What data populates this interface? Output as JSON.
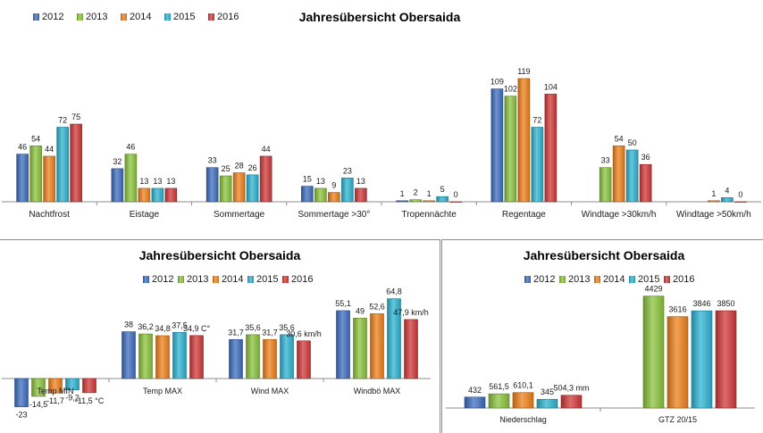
{
  "series_colors": {
    "2012": "#3f6fc0",
    "2013": "#8cc43d",
    "2014": "#f0821c",
    "2015": "#2fb4d2",
    "2016": "#d23a3a"
  },
  "chart_data": [
    {
      "type": "bar",
      "title": "Jahresübersicht Obersaida",
      "legend_position": "top-left",
      "series_names": [
        "2012",
        "2013",
        "2014",
        "2015",
        "2016"
      ],
      "categories": [
        "Nachtfrost",
        "Eistage",
        "Sommertage",
        "Sommertage >30°",
        "Tropennächte",
        "Regentage",
        "Windtage >30km/h",
        "Windtage >50km/h"
      ],
      "series": [
        {
          "name": "2012",
          "values": [
            46,
            32,
            33,
            15,
            1,
            109,
            null,
            null
          ]
        },
        {
          "name": "2013",
          "values": [
            54,
            46,
            25,
            13,
            2,
            102,
            33,
            null
          ]
        },
        {
          "name": "2014",
          "values": [
            44,
            13,
            28,
            9,
            1,
            119,
            54,
            1
          ]
        },
        {
          "name": "2015",
          "values": [
            72,
            13,
            26,
            23,
            5,
            72,
            50,
            4
          ]
        },
        {
          "name": "2016",
          "values": [
            75,
            13,
            44,
            13,
            0,
            104,
            36,
            0
          ]
        }
      ],
      "value_labels": [
        [
          "46",
          "32",
          "33",
          "15",
          "1",
          "109",
          "",
          ""
        ],
        [
          "54",
          "46",
          "25",
          "13",
          "2",
          "102",
          "33",
          ""
        ],
        [
          "44",
          "13",
          "28",
          "9",
          "1",
          "119",
          "54",
          "1"
        ],
        [
          "72",
          "13",
          "26",
          "23",
          "5",
          "72",
          "50",
          "4"
        ],
        [
          "75",
          "13",
          "44",
          "13",
          "0",
          "104",
          "36",
          "0"
        ]
      ],
      "ylim": [
        0,
        125
      ],
      "grid": false
    },
    {
      "type": "bar",
      "title": "Jahresübersicht Obersaida",
      "legend_position": "top",
      "series_names": [
        "2012",
        "2013",
        "2014",
        "2015",
        "2016"
      ],
      "categories": [
        "Temp MIN",
        "Temp MAX",
        "Wind MAX",
        "Windbö MAX"
      ],
      "series": [
        {
          "name": "2012",
          "values": [
            -23,
            38,
            31.7,
            55.1
          ]
        },
        {
          "name": "2013",
          "values": [
            -14.5,
            36.2,
            35.6,
            49
          ]
        },
        {
          "name": "2014",
          "values": [
            -11.7,
            34.8,
            31.7,
            52.6
          ]
        },
        {
          "name": "2015",
          "values": [
            -9.2,
            37.5,
            35.6,
            64.8
          ]
        },
        {
          "name": "2016",
          "values": [
            -11.5,
            34.9,
            30.6,
            47.9
          ]
        }
      ],
      "value_labels": [
        [
          "-23",
          "38",
          "31,7",
          "55,1"
        ],
        [
          "-14,5",
          "36,2",
          "35,6",
          "49"
        ],
        [
          "-11,7",
          "34,8",
          "31,7",
          "52,6"
        ],
        [
          "-9,2",
          "37,5",
          "35,6",
          "64,8"
        ],
        [
          "-11,5 °C",
          "34,9 C°",
          "30,6 km/h",
          "47,9 km/h"
        ]
      ],
      "ylim": [
        -25,
        70
      ],
      "grid": false
    },
    {
      "type": "bar",
      "title": "Jahresübersicht Obersaida",
      "legend_position": "top",
      "series_names": [
        "2012",
        "2013",
        "2014",
        "2015",
        "2016"
      ],
      "categories": [
        "Niederschlag",
        "GTZ 20/15"
      ],
      "series": [
        {
          "name": "2012",
          "values": [
            432,
            null
          ]
        },
        {
          "name": "2013",
          "values": [
            561.5,
            4429
          ]
        },
        {
          "name": "2014",
          "values": [
            610.1,
            3616
          ]
        },
        {
          "name": "2015",
          "values": [
            345,
            3846
          ]
        },
        {
          "name": "2016",
          "values": [
            504.3,
            3850
          ]
        }
      ],
      "value_labels": [
        [
          "432",
          ""
        ],
        [
          "561,5",
          "4429"
        ],
        [
          "610,1",
          "3616"
        ],
        [
          "345",
          "3846"
        ],
        [
          "504,3 mm",
          "3850"
        ]
      ],
      "ylim": [
        0,
        4700
      ],
      "grid": false
    }
  ]
}
